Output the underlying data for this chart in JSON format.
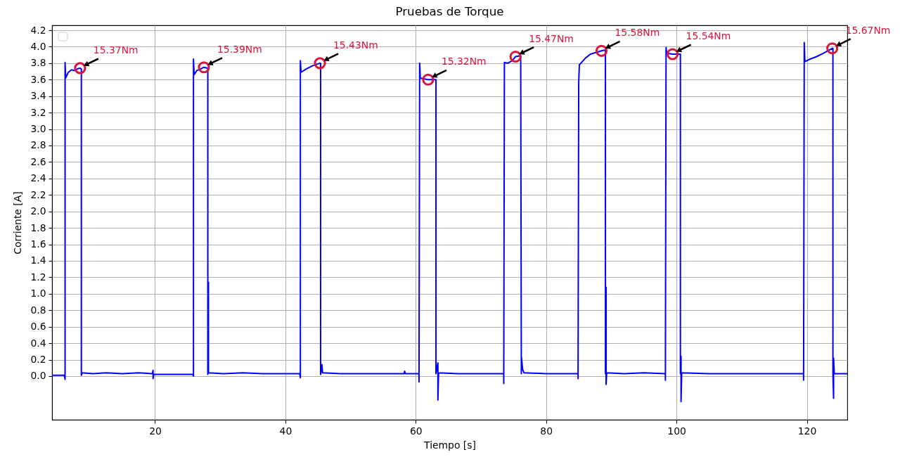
{
  "chart_data": {
    "type": "line",
    "title": "Pruebas de Torque",
    "xlabel": "Tiempo [s]",
    "ylabel": "Corriente [A]",
    "xlim": [
      4.2,
      126.2
    ],
    "ylim": [
      -0.53,
      4.26
    ],
    "xticks": [
      20,
      40,
      60,
      80,
      100,
      120
    ],
    "yticks": [
      {
        "value": 0,
        "label": "0.0"
      },
      0.2,
      0.4,
      0.6,
      0.8,
      {
        "value": 1,
        "label": "1.0"
      },
      1.2,
      1.4,
      1.6,
      1.8,
      {
        "value": 2,
        "label": "2.0"
      },
      2.2,
      2.4,
      2.6,
      2.8,
      {
        "value": 3,
        "label": "3.0"
      },
      3.2,
      3.4,
      3.6,
      3.8,
      {
        "value": 4,
        "label": "4.0"
      },
      4.2
    ],
    "grid": true,
    "series": [
      {
        "color": "#0000ff",
        "x": [
          4.2,
          6.1,
          6.2,
          6.2,
          6.3,
          6.7,
          7.2,
          7.7,
          8.1,
          8.5,
          8.7,
          8.7,
          8.8,
          10.5,
          12.5,
          15,
          17.5,
          19.6,
          19.7,
          19.7,
          19.8,
          22.5,
          25.8,
          25.9,
          25.9,
          26.0,
          26.4,
          27.0,
          27.5,
          28.1,
          28.1,
          28.2,
          28.2,
          30.5,
          33.5,
          36.5,
          39.5,
          42.2,
          42.3,
          42.3,
          42.4,
          43.2,
          44.2,
          45.3,
          45.4,
          45.4,
          45.6,
          45.7,
          48.5,
          52,
          55.5,
          58.2,
          58.3,
          58.4,
          60.5,
          60.5,
          60.6,
          60.7,
          61.3,
          61.9,
          63.1,
          63.1,
          63.4,
          63.4,
          63.5,
          66.5,
          70,
          73.5,
          73.5,
          73.6,
          74.1,
          74.8,
          75.3,
          76.1,
          76.2,
          76.2,
          76.4,
          76.6,
          80,
          84.9,
          84.9,
          85.0,
          85.1,
          86,
          86.8,
          88.5,
          89.1,
          89.1,
          89.2,
          89.2,
          89.3,
          92,
          95,
          98.3,
          98.3,
          98.4,
          98.5,
          99.4,
          100.6,
          100.6,
          100.7,
          100.7,
          100.8,
          105,
          110,
          115,
          119.5,
          119.5,
          119.6,
          119.7,
          120.5,
          121.5,
          122.5,
          123.9,
          124.0,
          124.0,
          124.1,
          124.1,
          124.2,
          126.2
        ],
        "values": [
          0.01,
          0.01,
          -0.04,
          3.81,
          3.62,
          3.69,
          3.72,
          3.71,
          3.73,
          3.74,
          3.73,
          0.01,
          0.04,
          0.03,
          0.04,
          0.03,
          0.04,
          0.03,
          0.07,
          -0.03,
          0.02,
          0.02,
          0.02,
          0.0,
          3.85,
          3.66,
          3.71,
          3.73,
          3.75,
          3.74,
          0.02,
          1.14,
          0.04,
          0.03,
          0.04,
          0.03,
          0.03,
          0.03,
          -0.02,
          3.83,
          3.69,
          3.73,
          3.77,
          3.8,
          3.8,
          0.02,
          0.14,
          0.04,
          0.03,
          0.03,
          0.03,
          0.03,
          0.06,
          0.03,
          0.03,
          -0.07,
          3.8,
          3.62,
          3.61,
          3.6,
          3.6,
          0.03,
          0.16,
          -0.29,
          0.04,
          0.03,
          0.03,
          0.03,
          -0.09,
          3.81,
          3.8,
          3.83,
          3.88,
          3.89,
          0.03,
          0.24,
          0.08,
          0.04,
          0.03,
          0.03,
          -0.03,
          3.57,
          3.78,
          3.86,
          3.91,
          3.95,
          3.96,
          0.03,
          1.08,
          -0.1,
          0.04,
          0.03,
          0.04,
          0.03,
          -0.05,
          3.99,
          3.92,
          3.91,
          3.91,
          0.03,
          0.24,
          -0.31,
          0.04,
          0.03,
          0.03,
          0.03,
          0.03,
          -0.05,
          4.05,
          3.82,
          3.85,
          3.88,
          3.92,
          3.98,
          3.98,
          0.03,
          -0.27,
          0.22,
          0.03,
          0.03
        ]
      },
      {
        "type": "scatter",
        "color": "#dc143c",
        "marker": "circle",
        "x": [
          8.5,
          27.5,
          45.3,
          61.9,
          75.3,
          88.5,
          99.4,
          123.9
        ],
        "values": [
          3.74,
          3.75,
          3.8,
          3.6,
          3.88,
          3.95,
          3.91,
          3.98
        ]
      }
    ],
    "annotations": [
      {
        "text": "15.37Nm",
        "x": 8.5,
        "y": 3.74
      },
      {
        "text": "15.39Nm",
        "x": 27.5,
        "y": 3.75
      },
      {
        "text": "15.43Nm",
        "x": 45.3,
        "y": 3.8
      },
      {
        "text": "15.32Nm",
        "x": 61.9,
        "y": 3.6
      },
      {
        "text": "15.47Nm",
        "x": 75.3,
        "y": 3.88
      },
      {
        "text": "15.58Nm",
        "x": 88.5,
        "y": 3.95
      },
      {
        "text": "15.54Nm",
        "x": 99.4,
        "y": 3.91
      },
      {
        "text": "15.67Nm",
        "x": 123.9,
        "y": 3.98
      }
    ]
  }
}
